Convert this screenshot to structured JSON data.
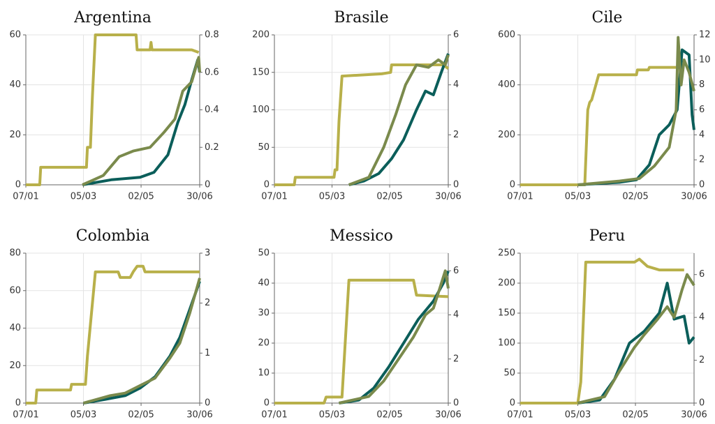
{
  "chart_data": [
    {
      "type": "line",
      "title": "Argentina",
      "xlim": [
        "07/01",
        "30/06"
      ],
      "xticks": [
        "07/01",
        "05/03",
        "02/05",
        "30/06"
      ],
      "ylim": [
        0,
        60
      ],
      "yticks": [
        0,
        20,
        40,
        60
      ],
      "y2lim": [
        0,
        0.8
      ],
      "y2ticks": [
        0,
        0.2,
        0.4,
        0.6,
        0.8
      ],
      "grid": true,
      "series": [
        {
          "color": "#b8b04a",
          "x": [
            "07/01",
            "21/01",
            "22/01",
            "08/03",
            "09/03",
            "12/03",
            "13/03",
            "14/03",
            "17/03",
            "27/04",
            "28/04",
            "11/05",
            "12/05",
            "13/05",
            "22/06",
            "29/06"
          ],
          "values": [
            0,
            0,
            7,
            7,
            15,
            15,
            25,
            35,
            60,
            60,
            54,
            54,
            57,
            54,
            54,
            53
          ]
        },
        {
          "color": "#0b5e5a",
          "x": [
            "04/03",
            "02/04",
            "01/05",
            "15/05",
            "29/05",
            "08/06",
            "15/06",
            "22/06",
            "28/06",
            "30/06"
          ],
          "values": [
            0,
            2,
            3,
            5,
            12,
            25,
            32,
            42,
            50,
            45
          ]
        },
        {
          "color": "#7a8a4c",
          "axis": "y2",
          "x": [
            "04/03",
            "25/03",
            "10/04",
            "24/04",
            "11/05",
            "25/05",
            "05/06",
            "13/06",
            "22/06",
            "29/06",
            "30/06"
          ],
          "values": [
            0,
            0.05,
            0.15,
            0.18,
            0.2,
            0.28,
            0.35,
            0.5,
            0.55,
            0.68,
            0.6
          ]
        }
      ]
    },
    {
      "type": "line",
      "title": "Brasile",
      "xlim": [
        "07/01",
        "30/06"
      ],
      "xticks": [
        "07/01",
        "05/03",
        "02/05",
        "30/06"
      ],
      "ylim": [
        0,
        200
      ],
      "yticks": [
        0,
        50,
        100,
        150,
        200
      ],
      "y2lim": [
        0,
        6
      ],
      "y2ticks": [
        0,
        2,
        4,
        6
      ],
      "grid": true,
      "series": [
        {
          "color": "#b8b04a",
          "x": [
            "07/01",
            "27/01",
            "28/01",
            "07/03",
            "08/03",
            "10/03",
            "12/03",
            "15/03",
            "24/04",
            "03/05",
            "04/05",
            "20/05",
            "25/06",
            "30/06"
          ],
          "values": [
            0,
            0,
            10,
            10,
            20,
            20,
            85,
            145,
            148,
            150,
            160,
            160,
            160,
            155
          ]
        },
        {
          "color": "#0b5e5a",
          "x": [
            "22/03",
            "06/04",
            "21/04",
            "04/05",
            "16/05",
            "29/05",
            "07/06",
            "15/06",
            "23/06",
            "30/06"
          ],
          "values": [
            0,
            5,
            15,
            35,
            60,
            100,
            125,
            120,
            150,
            175
          ]
        },
        {
          "color": "#7a8a4c",
          "axis": "y2",
          "x": [
            "22/03",
            "11/04",
            "26/04",
            "08/05",
            "18/05",
            "29/05",
            "10/06",
            "20/06",
            "27/06",
            "30/06"
          ],
          "values": [
            0,
            0.3,
            1.5,
            2.8,
            4,
            4.8,
            4.7,
            5,
            4.8,
            5.2
          ]
        }
      ]
    },
    {
      "type": "line",
      "title": "Cile",
      "xlim": [
        "07/01",
        "30/06"
      ],
      "xticks": [
        "07/01",
        "05/03",
        "02/05",
        "30/06"
      ],
      "ylim": [
        0,
        600
      ],
      "yticks": [
        0,
        200,
        400,
        600
      ],
      "y2lim": [
        0,
        12
      ],
      "y2ticks": [
        0,
        2,
        4,
        6,
        8,
        10,
        12
      ],
      "grid": true,
      "series": [
        {
          "color": "#b8b04a",
          "x": [
            "07/01",
            "12/03",
            "15/03",
            "17/03",
            "19/03",
            "26/03",
            "03/05",
            "04/05",
            "15/05",
            "16/05",
            "11/06",
            "15/06"
          ],
          "values": [
            0,
            0,
            300,
            330,
            340,
            440,
            440,
            460,
            460,
            470,
            470,
            470
          ]
        },
        {
          "color": "#0b5e5a",
          "x": [
            "05/03",
            "16/04",
            "03/05",
            "16/05",
            "26/05",
            "05/06",
            "13/06",
            "18/06",
            "25/06",
            "28/06",
            "30/06"
          ],
          "values": [
            0,
            10,
            20,
            80,
            200,
            240,
            300,
            540,
            520,
            280,
            220
          ]
        },
        {
          "color": "#7a8a4c",
          "axis": "y2",
          "x": [
            "05/03",
            "16/04",
            "06/05",
            "21/05",
            "05/06",
            "12/06",
            "14/06",
            "17/06",
            "20/06",
            "25/06",
            "30/06"
          ],
          "values": [
            0,
            0.3,
            0.5,
            1.5,
            3,
            6,
            11.8,
            8,
            10,
            9,
            7.5
          ]
        }
      ]
    },
    {
      "type": "line",
      "title": "Colombia",
      "xlim": [
        "07/01",
        "30/06"
      ],
      "xticks": [
        "07/01",
        "05/03",
        "02/05",
        "30/06"
      ],
      "ylim": [
        0,
        80
      ],
      "yticks": [
        0,
        20,
        40,
        60,
        80
      ],
      "y2lim": [
        0,
        3
      ],
      "y2ticks": [
        0,
        1,
        2,
        3
      ],
      "grid": true,
      "series": [
        {
          "color": "#b8b04a",
          "x": [
            "07/01",
            "17/01",
            "18/01",
            "21/02",
            "22/02",
            "07/03",
            "09/03",
            "17/03",
            "09/04",
            "11/04",
            "21/04",
            "24/04",
            "28/04",
            "04/05",
            "06/05",
            "30/06"
          ],
          "values": [
            0,
            0,
            7,
            7,
            10,
            10,
            25,
            70,
            70,
            67,
            67,
            70,
            73,
            73,
            70,
            70
          ]
        },
        {
          "color": "#0b5e5a",
          "x": [
            "05/03",
            "27/03",
            "16/04",
            "01/05",
            "16/05",
            "31/05",
            "10/06",
            "20/06",
            "30/06"
          ],
          "values": [
            0,
            2,
            4,
            8,
            14,
            25,
            35,
            50,
            65
          ]
        },
        {
          "color": "#7a8a4c",
          "axis": "y2",
          "x": [
            "05/03",
            "01/04",
            "16/04",
            "01/05",
            "16/05",
            "31/05",
            "10/06",
            "20/06",
            "30/06"
          ],
          "values": [
            0,
            0.15,
            0.2,
            0.35,
            0.5,
            0.9,
            1.2,
            1.8,
            2.5
          ]
        }
      ]
    },
    {
      "type": "line",
      "title": "Messico",
      "xlim": [
        "07/01",
        "30/06"
      ],
      "xticks": [
        "07/01",
        "05/03",
        "02/05",
        "30/06"
      ],
      "ylim": [
        0,
        50
      ],
      "yticks": [
        0,
        10,
        20,
        30,
        40,
        50
      ],
      "y2lim": [
        0,
        6.8
      ],
      "y2ticks": [
        0,
        2,
        4,
        6
      ],
      "grid": true,
      "series": [
        {
          "color": "#b8b04a",
          "x": [
            "07/01",
            "26/02",
            "28/02",
            "15/03",
            "22/03",
            "26/05",
            "29/05",
            "30/06"
          ],
          "values": [
            0,
            0,
            2,
            2,
            41,
            41,
            36,
            35.5
          ]
        },
        {
          "color": "#0b5e5a",
          "x": [
            "12/03",
            "01/04",
            "16/04",
            "01/05",
            "16/05",
            "31/05",
            "15/06",
            "25/06",
            "30/06"
          ],
          "values": [
            0,
            1,
            5,
            12,
            20,
            28,
            34,
            40,
            44
          ]
        },
        {
          "color": "#7a8a4c",
          "axis": "y2",
          "x": [
            "12/03",
            "11/04",
            "26/04",
            "11/05",
            "26/05",
            "07/06",
            "15/06",
            "20/06",
            "27/06",
            "30/06"
          ],
          "values": [
            0,
            0.3,
            1,
            2,
            3,
            4,
            4.3,
            5,
            6,
            5.2
          ]
        }
      ]
    },
    {
      "type": "line",
      "title": "Peru",
      "xlim": [
        "07/01",
        "30/06"
      ],
      "xticks": [
        "07/01",
        "05/03",
        "02/05",
        "30/06"
      ],
      "ylim": [
        0,
        250
      ],
      "yticks": [
        0,
        50,
        100,
        150,
        200,
        250
      ],
      "y2lim": [
        0,
        7
      ],
      "y2ticks": [
        0,
        2,
        4,
        6
      ],
      "grid": true,
      "series": [
        {
          "color": "#b8b04a",
          "x": [
            "07/01",
            "05/03",
            "08/03",
            "13/03",
            "01/05",
            "06/05",
            "14/05",
            "26/05",
            "20/06"
          ],
          "values": [
            0,
            0,
            35,
            235,
            235,
            240,
            228,
            222,
            222
          ]
        },
        {
          "color": "#0b5e5a",
          "x": [
            "05/03",
            "27/03",
            "11/04",
            "26/04",
            "11/05",
            "26/05",
            "03/06",
            "10/06",
            "20/06",
            "25/06",
            "30/06"
          ],
          "values": [
            0,
            5,
            40,
            100,
            120,
            150,
            200,
            140,
            145,
            100,
            110
          ]
        },
        {
          "color": "#7a8a4c",
          "axis": "y2",
          "x": [
            "05/03",
            "01/04",
            "16/04",
            "01/05",
            "11/05",
            "24/05",
            "03/06",
            "10/06",
            "18/06",
            "23/06",
            "30/06"
          ],
          "values": [
            0,
            0.3,
            1.5,
            2.6,
            3.2,
            3.9,
            4.5,
            4,
            5.3,
            6,
            5.5
          ]
        }
      ]
    }
  ]
}
